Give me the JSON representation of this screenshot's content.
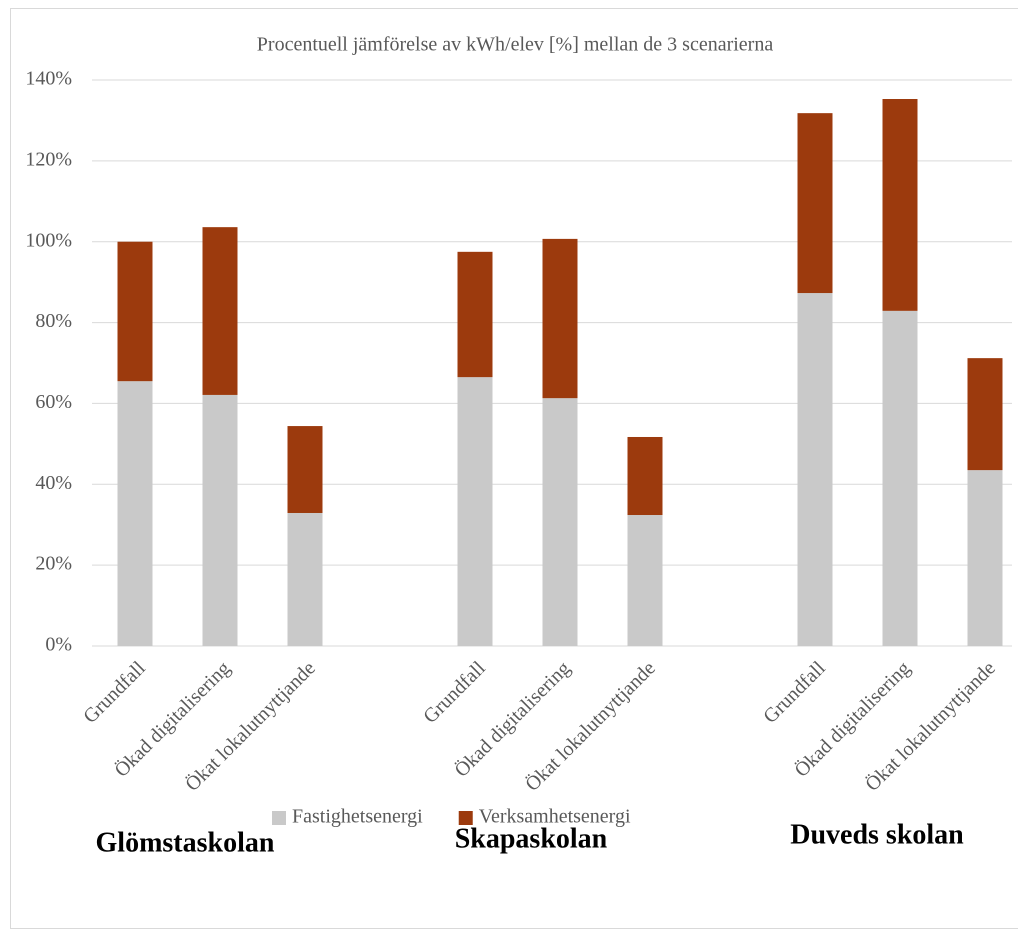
{
  "chart_data": {
    "type": "stacked_bar",
    "title": "Procentuell jämförelse av kWh/elev [%] mellan de 3 scenarierna",
    "groups": [
      "Glömstaskolan",
      "Skapaskolan",
      "Duveds skolan"
    ],
    "categories": [
      "Grundfall",
      "Ökad digitalisering",
      "Ökat lokalutnyttjande",
      "Grundfall",
      "Ökad digitalisering",
      "Ökat lokalutnyttjande",
      "Grundfall",
      "Ökad digitalisering",
      "Ökat lokalutnyttjande"
    ],
    "series": [
      {
        "name": "Fastighetsenergi",
        "color": "#c9c9c9",
        "values": [
          65.5,
          62.1,
          32.9,
          66.5,
          61.3,
          32.4,
          87.3,
          82.9,
          43.5
        ]
      },
      {
        "name": "Verksamhetsenergi",
        "color": "#9c3a0d",
        "values": [
          34.5,
          41.5,
          21.5,
          31.0,
          39.4,
          19.3,
          44.5,
          52.4,
          27.7
        ]
      }
    ],
    "ylim": [
      0,
      140
    ],
    "yticks": [
      {
        "value": 0,
        "label": "0%"
      },
      {
        "value": 20,
        "label": "20%"
      },
      {
        "value": 40,
        "label": "40%"
      },
      {
        "value": 60,
        "label": "60%"
      },
      {
        "value": 80,
        "label": "80%"
      },
      {
        "value": 100,
        "label": "100%"
      },
      {
        "value": 120,
        "label": "120%"
      },
      {
        "value": 140,
        "label": "140%"
      }
    ],
    "grid": true,
    "legend": "bottom"
  }
}
